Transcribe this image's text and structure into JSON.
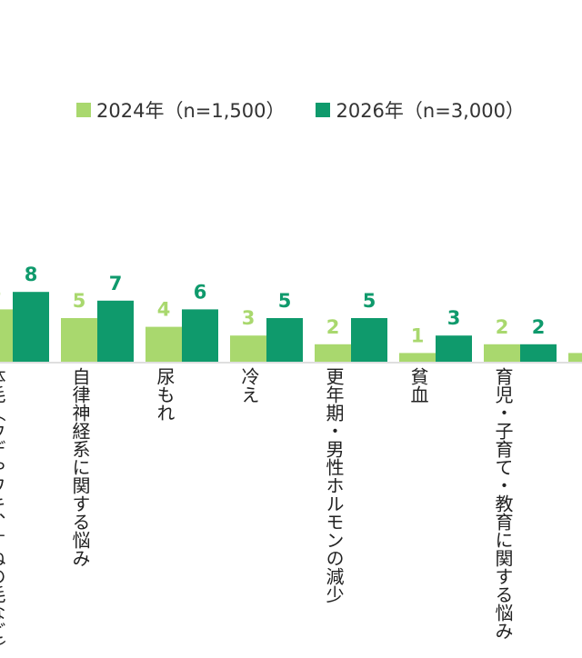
{
  "chart_data": {
    "type": "bar",
    "title": "",
    "xlabel": "",
    "ylabel": "",
    "categories": [
      "体毛（ウデやワキ、すねの毛など）",
      "自律神経系に関する悩み",
      "尿もれ",
      "冷え",
      "更年期・男性ホルモンの減少",
      "貧血",
      "育児・子育て・教育に関する悩み",
      ""
    ],
    "series": [
      {
        "name": "2024年（n=1,500）",
        "color": "#a9d86e",
        "values": [
          6,
          5,
          4,
          3,
          2,
          1,
          2,
          1
        ]
      },
      {
        "name": "2026年（n=3,000）",
        "color": "#0f9a6c",
        "values": [
          8,
          7,
          6,
          5,
          5,
          3,
          2,
          null
        ]
      }
    ],
    "legend_position": "top",
    "grid": false
  }
}
